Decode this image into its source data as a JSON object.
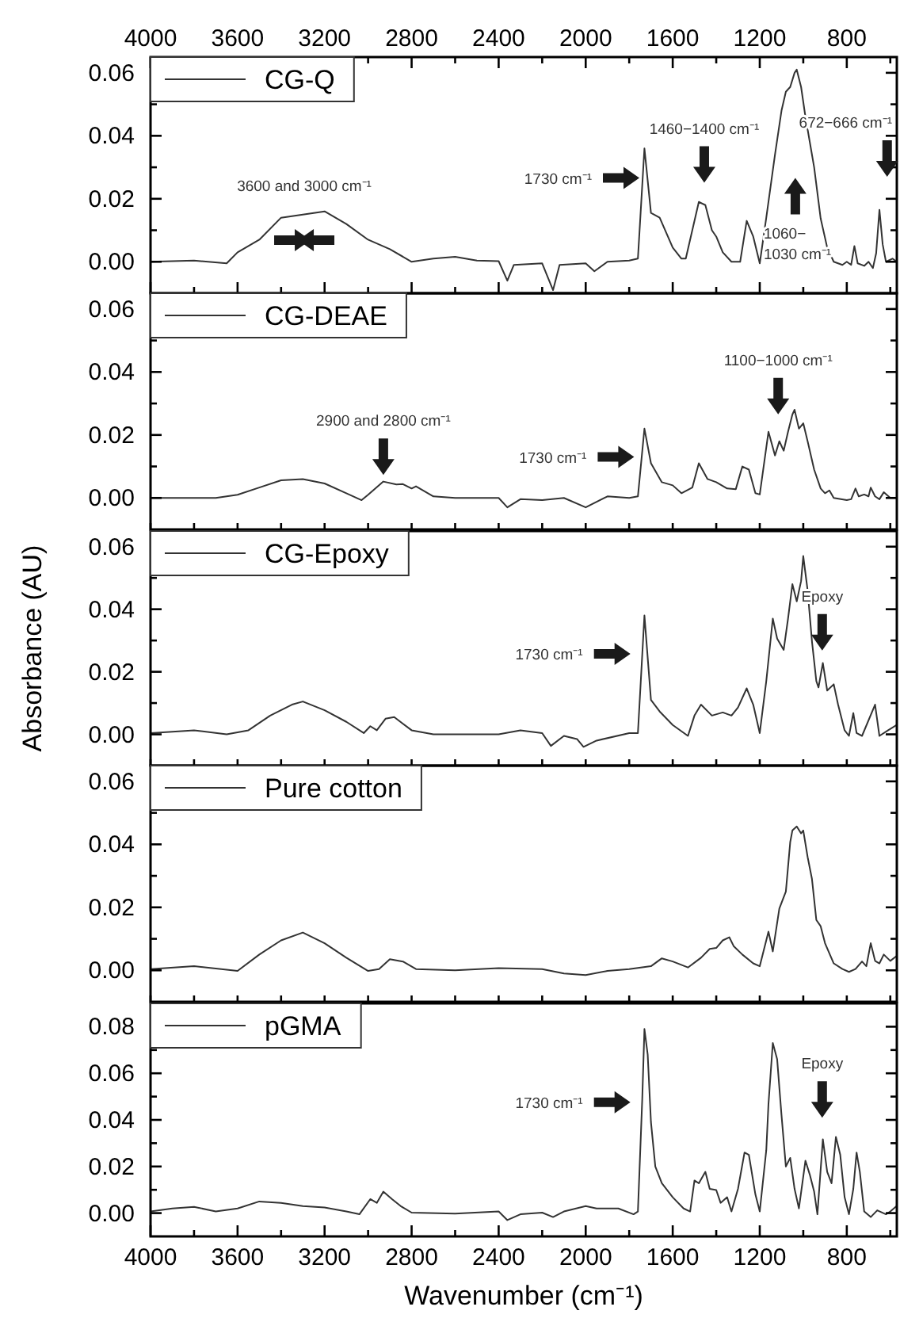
{
  "chart_data": [
    {
      "type": "line",
      "legend": "top left",
      "xlim": [
        4000,
        570
      ],
      "ylim": [
        -0.01,
        0.065
      ],
      "xticks": [
        4000,
        {
          "value": 3800,
          "label": null
        },
        3600,
        {
          "value": 3400,
          "label": null
        },
        3200,
        {
          "value": 3000,
          "label": null
        },
        2800,
        {
          "value": 2600,
          "label": null
        },
        2400,
        {
          "value": 2200,
          "label": null
        },
        2000,
        {
          "value": 1800,
          "label": null
        },
        1600,
        {
          "value": 1400,
          "label": null
        },
        1200,
        {
          "value": 1000,
          "label": null
        },
        800,
        {
          "value": 600,
          "label": null
        }
      ],
      "yticks": [
        {
          "value": 0,
          "label": "0.00"
        },
        {
          "value": 0.01,
          "label": null
        },
        {
          "value": 0.02,
          "label": "0.02"
        },
        {
          "value": 0.03,
          "label": null
        },
        {
          "value": 0.04,
          "label": "0.04"
        },
        {
          "value": 0.05,
          "label": null
        },
        {
          "value": 0.06,
          "label": "0.06"
        }
      ],
      "series": [
        {
          "name": "CG-Q",
          "color": "#333333",
          "x": [
            4000,
            3800,
            3650,
            3600,
            3500,
            3400,
            3300,
            3200,
            3100,
            3000,
            2900,
            2800,
            2700,
            2600,
            2500,
            2400,
            2360,
            2330,
            2200,
            2150,
            2120,
            2000,
            1960,
            1900,
            1800,
            1760,
            1730,
            1700,
            1660,
            1600,
            1560,
            1540,
            1480,
            1450,
            1420,
            1400,
            1370,
            1330,
            1290,
            1260,
            1230,
            1200,
            1170,
            1130,
            1100,
            1080,
            1060,
            1040,
            1030,
            1010,
            990,
            970,
            950,
            920,
            890,
            860,
            820,
            800,
            780,
            765,
            750,
            720,
            700,
            680,
            665,
            650,
            635,
            620,
            590,
            570
          ],
          "values": [
            0,
            0.0004,
            -0.0005,
            0.003,
            0.007,
            0.014,
            0.015,
            0.016,
            0.012,
            0.007,
            0.004,
            0,
            0.001,
            0.0016,
            0.0004,
            0.0002,
            -0.006,
            -0.001,
            -0.0005,
            -0.009,
            -0.001,
            -0.0005,
            -0.003,
            0,
            0.0004,
            0.001,
            0.036,
            0.0155,
            0.014,
            0.0045,
            0.001,
            0.001,
            0.019,
            0.018,
            0.01,
            0.008,
            0.003,
            0,
            0,
            0.013,
            0.008,
            -0.0005,
            0.014,
            0.034,
            0.048,
            0.054,
            0.0555,
            0.06,
            0.061,
            0.0555,
            0.046,
            0.038,
            0.03,
            0.0137,
            0.0045,
            0,
            -0.001,
            0,
            -0.001,
            0.005,
            -0.0005,
            -0.0013,
            0,
            -0.002,
            0.0027,
            0.0165,
            0.0055,
            0,
            0.001,
            0
          ]
        }
      ],
      "annotations": [
        "3600 and 3000 cm⁻¹",
        "1730 cm⁻¹",
        "1460−1400 cm⁻¹",
        "672−666 cm⁻¹",
        "1060−1030 cm⁻¹"
      ]
    },
    {
      "type": "line",
      "legend": "top left",
      "tick_labels": "y",
      "xlim": [
        4000,
        570
      ],
      "ylim": [
        -0.01,
        0.065
      ],
      "xticks": [
        {
          "value": 4000,
          "label": null
        },
        {
          "value": 3800,
          "label": null
        },
        {
          "value": 3600,
          "label": null
        },
        {
          "value": 3400,
          "label": null
        },
        {
          "value": 3200,
          "label": null
        },
        {
          "value": 3000,
          "label": null
        },
        {
          "value": 2800,
          "label": null
        },
        {
          "value": 2600,
          "label": null
        },
        {
          "value": 2400,
          "label": null
        },
        {
          "value": 2200,
          "label": null
        },
        {
          "value": 2000,
          "label": null
        },
        {
          "value": 1800,
          "label": null
        },
        {
          "value": 1600,
          "label": null
        },
        {
          "value": 1400,
          "label": null
        },
        {
          "value": 1200,
          "label": null
        },
        {
          "value": 1000,
          "label": null
        },
        {
          "value": 800,
          "label": null
        },
        {
          "value": 600,
          "label": null
        }
      ],
      "yticks": [
        {
          "value": 0,
          "label": "0.00"
        },
        {
          "value": 0.01,
          "label": null
        },
        {
          "value": 0.02,
          "label": "0.02"
        },
        {
          "value": 0.03,
          "label": null
        },
        {
          "value": 0.04,
          "label": "0.04"
        },
        {
          "value": 0.05,
          "label": null
        },
        {
          "value": 0.06,
          "label": "0.06"
        }
      ],
      "series": [
        {
          "name": "CG-DEAE",
          "color": "#333333",
          "x": [
            4000,
            3700,
            3600,
            3500,
            3400,
            3300,
            3200,
            3100,
            3030,
            3000,
            2930,
            2870,
            2840,
            2800,
            2780,
            2700,
            2600,
            2400,
            2360,
            2300,
            2200,
            2100,
            2000,
            1900,
            1800,
            1760,
            1730,
            1700,
            1650,
            1600,
            1560,
            1510,
            1480,
            1440,
            1400,
            1350,
            1310,
            1280,
            1250,
            1220,
            1200,
            1160,
            1130,
            1110,
            1090,
            1070,
            1050,
            1040,
            1020,
            1000,
            980,
            950,
            920,
            900,
            880,
            860,
            800,
            780,
            760,
            745,
            720,
            700,
            690,
            670,
            650,
            630,
            600,
            570
          ],
          "values": [
            0,
            0,
            0.001,
            0.0033,
            0.0056,
            0.006,
            0.0046,
            0.0015,
            -0.0007,
            0.001,
            0.0052,
            0.0043,
            0.0044,
            0.003,
            0.0037,
            0.0005,
            0,
            0,
            -0.003,
            -0.0004,
            -0.0007,
            0,
            -0.003,
            0.0005,
            0,
            0.0005,
            0.022,
            0.011,
            0.005,
            0.004,
            0.0015,
            0.0033,
            0.011,
            0.006,
            0.005,
            0.003,
            0.0028,
            0.01,
            0.009,
            0.0015,
            0.0011,
            0.021,
            0.0135,
            0.018,
            0.015,
            0.021,
            0.0265,
            0.028,
            0.022,
            0.0237,
            0.018,
            0.009,
            0.003,
            0.0015,
            0.0024,
            0,
            -0.0007,
            -0.0004,
            0.003,
            0.0005,
            0.0011,
            0.0005,
            0.0033,
            0.0005,
            -0.0004,
            0.0018,
            0,
            0
          ]
        }
      ],
      "annotations": [
        "2900 and 2800 cm⁻¹",
        "1730 cm⁻¹",
        "1100−1000 cm⁻¹"
      ]
    },
    {
      "type": "line",
      "legend": "top left",
      "tick_labels": "y",
      "ylabel": "Absorbance (AU)",
      "xlim": [
        4000,
        570
      ],
      "ylim": [
        -0.01,
        0.065
      ],
      "xticks": [
        {
          "value": 4000,
          "label": null
        },
        {
          "value": 3800,
          "label": null
        },
        {
          "value": 3600,
          "label": null
        },
        {
          "value": 3400,
          "label": null
        },
        {
          "value": 3200,
          "label": null
        },
        {
          "value": 3000,
          "label": null
        },
        {
          "value": 2800,
          "label": null
        },
        {
          "value": 2600,
          "label": null
        },
        {
          "value": 2400,
          "label": null
        },
        {
          "value": 2200,
          "label": null
        },
        {
          "value": 2000,
          "label": null
        },
        {
          "value": 1800,
          "label": null
        },
        {
          "value": 1600,
          "label": null
        },
        {
          "value": 1400,
          "label": null
        },
        {
          "value": 1200,
          "label": null
        },
        {
          "value": 1000,
          "label": null
        },
        {
          "value": 800,
          "label": null
        },
        {
          "value": 600,
          "label": null
        }
      ],
      "yticks": [
        {
          "value": 0,
          "label": "0.00"
        },
        {
          "value": 0.01,
          "label": null
        },
        {
          "value": 0.02,
          "label": "0.02"
        },
        {
          "value": 0.03,
          "label": null
        },
        {
          "value": 0.04,
          "label": "0.04"
        },
        {
          "value": 0.05,
          "label": null
        },
        {
          "value": 0.06,
          "label": "0.06"
        }
      ],
      "series": [
        {
          "name": "CG-Epoxy",
          "color": "#333333",
          "x": [
            4000,
            3800,
            3650,
            3550,
            3450,
            3350,
            3300,
            3200,
            3100,
            3020,
            2990,
            2960,
            2920,
            2880,
            2800,
            2700,
            2400,
            2300,
            2200,
            2160,
            2100,
            2040,
            2010,
            1950,
            1800,
            1760,
            1730,
            1700,
            1660,
            1600,
            1530,
            1500,
            1470,
            1420,
            1370,
            1330,
            1300,
            1260,
            1230,
            1200,
            1170,
            1140,
            1120,
            1090,
            1070,
            1050,
            1030,
            1010,
            1000,
            980,
            960,
            940,
            930,
            910,
            890,
            860,
            840,
            810,
            790,
            770,
            755,
            730,
            670,
            650,
            610,
            570
          ],
          "values": [
            0.0004,
            0.0013,
            0,
            0.0013,
            0.006,
            0.0095,
            0.0105,
            0.0077,
            0.004,
            0.0004,
            0.0026,
            0.0013,
            0.005,
            0.0055,
            0.0013,
            0,
            0,
            0.0013,
            0.0004,
            -0.0037,
            -0.0005,
            -0.0015,
            -0.004,
            -0.002,
            0.0004,
            0.0004,
            0.038,
            0.011,
            0.0073,
            0.003,
            -0.0005,
            0.006,
            0.0095,
            0.006,
            0.007,
            0.006,
            0.0086,
            0.0147,
            0.0095,
            0.0004,
            0.017,
            0.037,
            0.0306,
            0.027,
            0.037,
            0.048,
            0.0425,
            0.049,
            0.057,
            0.046,
            0.0297,
            0.017,
            0.015,
            0.0228,
            0.014,
            0.016,
            0.0095,
            0.0013,
            -0.0005,
            0.0068,
            0.0004,
            -0.0005,
            0.0095,
            -0.0005,
            0.0013,
            0.003
          ]
        }
      ],
      "annotations": [
        "1730 cm⁻¹",
        "Epoxy"
      ]
    },
    {
      "type": "line",
      "legend": "top left",
      "tick_labels": "y",
      "xlim": [
        4000,
        570
      ],
      "ylim": [
        -0.01,
        0.065
      ],
      "xticks": [
        {
          "value": 4000,
          "label": null
        },
        {
          "value": 3800,
          "label": null
        },
        {
          "value": 3600,
          "label": null
        },
        {
          "value": 3400,
          "label": null
        },
        {
          "value": 3200,
          "label": null
        },
        {
          "value": 3000,
          "label": null
        },
        {
          "value": 2800,
          "label": null
        },
        {
          "value": 2600,
          "label": null
        },
        {
          "value": 2400,
          "label": null
        },
        {
          "value": 2200,
          "label": null
        },
        {
          "value": 2000,
          "label": null
        },
        {
          "value": 1800,
          "label": null
        },
        {
          "value": 1600,
          "label": null
        },
        {
          "value": 1400,
          "label": null
        },
        {
          "value": 1200,
          "label": null
        },
        {
          "value": 1000,
          "label": null
        },
        {
          "value": 800,
          "label": null
        },
        {
          "value": 600,
          "label": null
        }
      ],
      "yticks": [
        {
          "value": 0,
          "label": "0.00"
        },
        {
          "value": 0.01,
          "label": null
        },
        {
          "value": 0.02,
          "label": "0.02"
        },
        {
          "value": 0.03,
          "label": null
        },
        {
          "value": 0.04,
          "label": "0.04"
        },
        {
          "value": 0.05,
          "label": null
        },
        {
          "value": 0.06,
          "label": "0.06"
        }
      ],
      "series": [
        {
          "name": "Pure cotton",
          "color": "#333333",
          "x": [
            4000,
            3800,
            3600,
            3500,
            3400,
            3300,
            3200,
            3100,
            3000,
            2950,
            2900,
            2840,
            2780,
            2600,
            2400,
            2200,
            2100,
            2000,
            1900,
            1800,
            1700,
            1650,
            1600,
            1530,
            1470,
            1430,
            1400,
            1370,
            1340,
            1320,
            1280,
            1230,
            1200,
            1160,
            1140,
            1110,
            1080,
            1060,
            1050,
            1030,
            1010,
            1000,
            980,
            960,
            940,
            920,
            900,
            860,
            820,
            790,
            760,
            730,
            710,
            690,
            670,
            650,
            630,
            600,
            570
          ],
          "values": [
            0.0004,
            0.0013,
            -0.0002,
            0.005,
            0.0095,
            0.012,
            0.0086,
            0.004,
            -0.0002,
            0.0004,
            0.0035,
            0.0028,
            0.0004,
            0,
            0.0007,
            0.0004,
            -0.001,
            -0.0015,
            -0.0002,
            0.0004,
            0.0013,
            0.0038,
            0.0028,
            0.0009,
            0.004,
            0.0068,
            0.0071,
            0.0095,
            0.0105,
            0.0077,
            0.005,
            0.0022,
            0.0013,
            0.0123,
            0.006,
            0.0196,
            0.025,
            0.0407,
            0.0444,
            0.0457,
            0.0435,
            0.0444,
            0.036,
            0.029,
            0.016,
            0.014,
            0.0086,
            0.0022,
            0.0004,
            -0.0005,
            0.0004,
            0.0028,
            0.0013,
            0.0086,
            0.003,
            0.0022,
            0.005,
            0.003,
            0.0046
          ]
        }
      ]
    },
    {
      "type": "line",
      "legend": "top left",
      "xlabel": "Wavenumber (cm⁻¹)",
      "xlim": [
        4000,
        570
      ],
      "ylim": [
        -0.01,
        0.09
      ],
      "xticks": [
        4000,
        {
          "value": 3800,
          "label": null
        },
        3600,
        {
          "value": 3400,
          "label": null
        },
        3200,
        {
          "value": 3000,
          "label": null
        },
        2800,
        {
          "value": 2600,
          "label": null
        },
        2400,
        {
          "value": 2200,
          "label": null
        },
        2000,
        {
          "value": 1800,
          "label": null
        },
        1600,
        {
          "value": 1400,
          "label": null
        },
        1200,
        {
          "value": 1000,
          "label": null
        },
        800,
        {
          "value": 600,
          "label": null
        }
      ],
      "yticks": [
        {
          "value": 0,
          "label": "0.00"
        },
        {
          "value": 0.01,
          "label": null
        },
        {
          "value": 0.02,
          "label": "0.02"
        },
        {
          "value": 0.03,
          "label": null
        },
        {
          "value": 0.04,
          "label": "0.04"
        },
        {
          "value": 0.05,
          "label": null
        },
        {
          "value": 0.06,
          "label": "0.06"
        },
        {
          "value": 0.07,
          "label": null
        },
        {
          "value": 0.08,
          "label": "0.08"
        }
      ],
      "series": [
        {
          "name": "pGMA",
          "color": "#333333",
          "x": [
            4000,
            3900,
            3800,
            3700,
            3600,
            3500,
            3400,
            3300,
            3200,
            3100,
            3040,
            2990,
            2960,
            2930,
            2890,
            2850,
            2800,
            2600,
            2400,
            2360,
            2300,
            2200,
            2150,
            2100,
            2000,
            1950,
            1850,
            1780,
            1760,
            1740,
            1730,
            1715,
            1700,
            1680,
            1650,
            1600,
            1550,
            1520,
            1500,
            1480,
            1450,
            1430,
            1400,
            1380,
            1350,
            1330,
            1300,
            1270,
            1250,
            1220,
            1200,
            1170,
            1160,
            1140,
            1120,
            1100,
            1080,
            1060,
            1040,
            1020,
            990,
            970,
            950,
            935,
            910,
            890,
            870,
            850,
            830,
            810,
            790,
            770,
            755,
            740,
            720,
            690,
            660,
            620,
            600,
            570
          ],
          "values": [
            0.0007,
            0.002,
            0.0027,
            0.0007,
            0.002,
            0.005,
            0.0044,
            0.003,
            0.0024,
            0.0007,
            -0.0005,
            0.006,
            0.0044,
            0.0092,
            0.006,
            0.003,
            0.0002,
            -0.0002,
            0.0007,
            -0.003,
            -0.0005,
            0.0002,
            -0.0017,
            0.0007,
            0.003,
            0.002,
            0.002,
            -0.0005,
            0.0007,
            0.049,
            0.079,
            0.068,
            0.039,
            0.02,
            0.0128,
            0.0068,
            0.002,
            0.0007,
            0.014,
            0.0128,
            0.0177,
            0.0104,
            0.0099,
            0.0044,
            0.0068,
            0.0007,
            0.0104,
            0.026,
            0.025,
            0.008,
            0.0007,
            0.027,
            0.0467,
            0.073,
            0.066,
            0.042,
            0.02,
            0.0237,
            0.0104,
            0.002,
            0.0225,
            0.0165,
            0.0092,
            -0.0005,
            0.0317,
            0.0177,
            0.0128,
            0.0327,
            0.025,
            0.0068,
            -0.0005,
            0.0104,
            0.026,
            0.0177,
            0.0007,
            -0.0017,
            0.0012,
            -0.0005,
            0.0007,
            0.0031
          ]
        }
      ],
      "annotations": [
        "1730 cm⁻¹",
        "Epoxy"
      ]
    }
  ]
}
